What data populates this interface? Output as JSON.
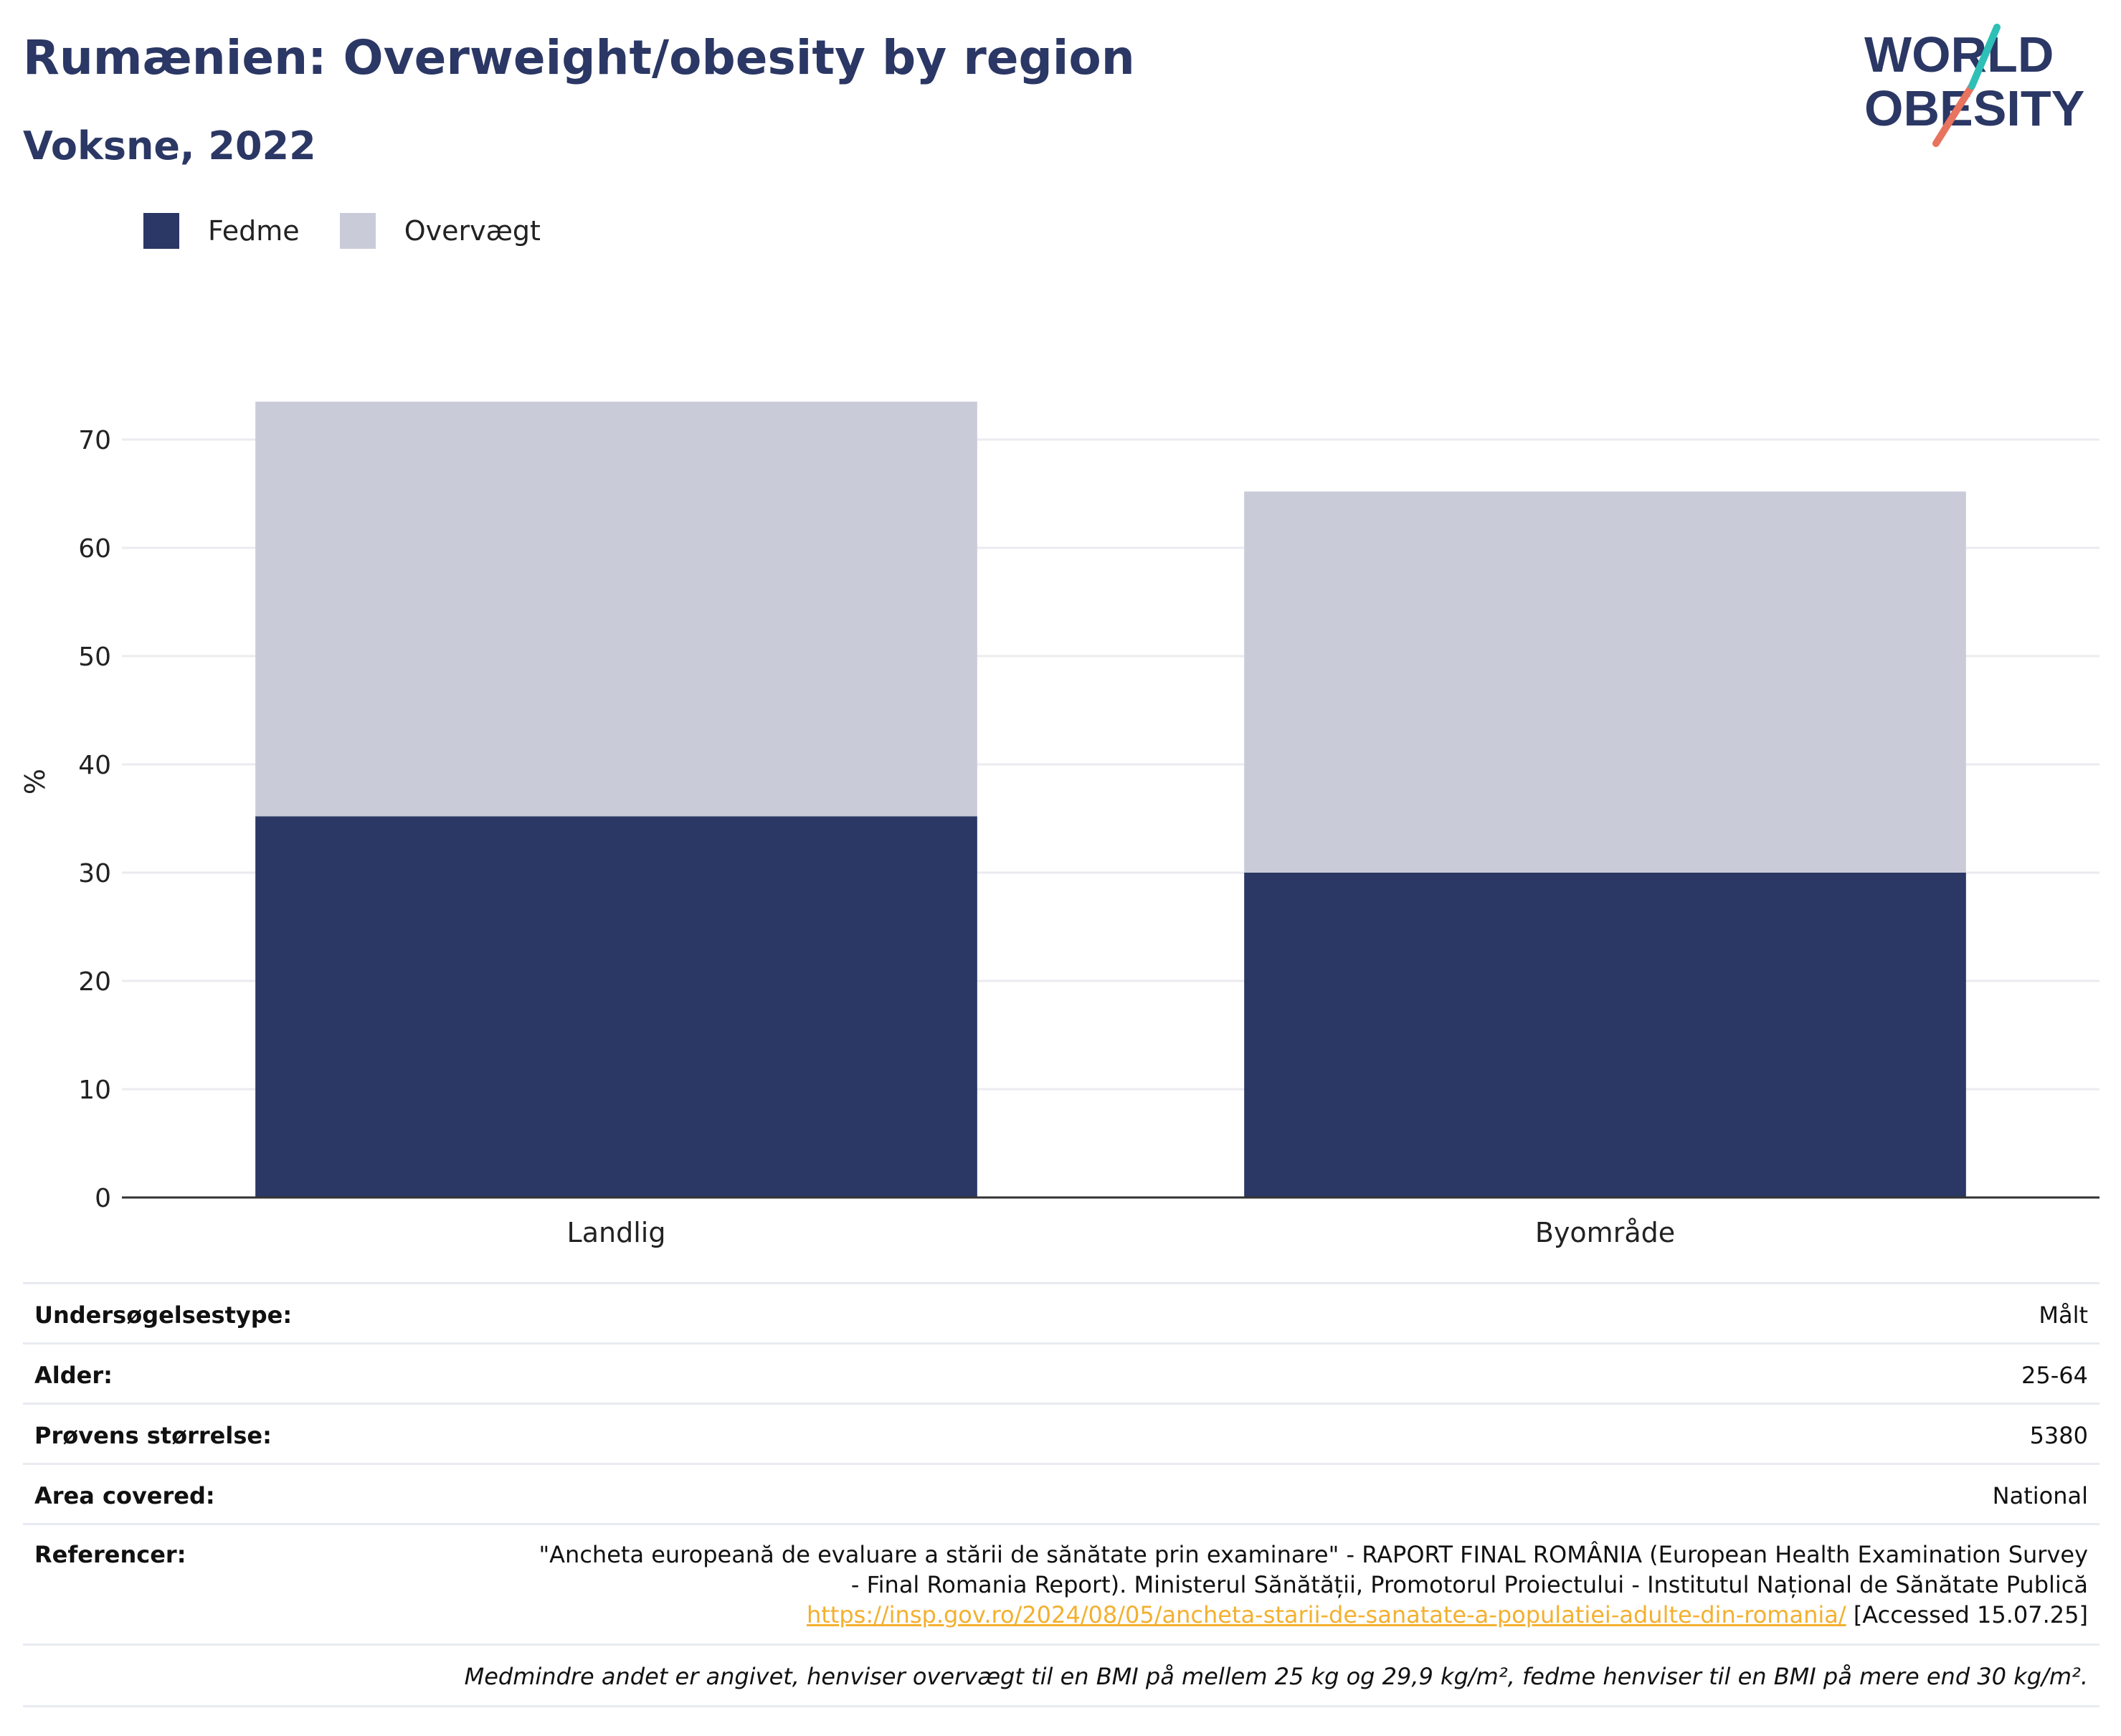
{
  "title": "Rumænien: Overweight/obesity by region",
  "subtitle": "Voksne, 2022",
  "logo": {
    "line1": "WORLD",
    "line2": "OBESITY"
  },
  "legend": [
    {
      "label": "Fedme",
      "color": "#2b3764"
    },
    {
      "label": "Overvægt",
      "color": "#c9ccd8"
    }
  ],
  "chart_data": {
    "type": "bar",
    "stacked": true,
    "categories": [
      "Landlig",
      "Byområde"
    ],
    "series": [
      {
        "name": "Fedme",
        "values": [
          35.2,
          30.0
        ],
        "color": "#2b3764"
      },
      {
        "name": "Overvægt",
        "values": [
          38.3,
          35.2
        ],
        "color": "#c9ccd8"
      }
    ],
    "ylabel": "%",
    "xlabel": "",
    "ylim": [
      0,
      75
    ],
    "yticks": [
      0,
      10,
      20,
      30,
      40,
      50,
      60,
      70
    ],
    "grid": true,
    "legend_position": "top-left"
  },
  "meta": {
    "survey_type": {
      "label": "Undersøgelsestype:",
      "value": "Målt"
    },
    "age": {
      "label": "Alder:",
      "value": "25-64"
    },
    "sample": {
      "label": "Prøvens størrelse:",
      "value": "5380"
    },
    "area": {
      "label": "Area covered:",
      "value": "National"
    },
    "references": {
      "label": "Referencer:",
      "line1": "\"Ancheta europeană de evaluare a stării de sănătate prin examinare\" - RAPORT FINAL ROMÂNIA (European Health Examination Survey",
      "line2": "- Final Romania Report). Ministerul Sănătății, Promotorul Proiectului - Institutul Național de Sănătate Publică",
      "link": "https://insp.gov.ro/2024/08/05/ancheta-starii-de-sanatate-a-populatiei-adulte-din-romania/",
      "accessed": " [Accessed 15.07.25]"
    },
    "note": "Medmindre andet er angivet, henviser overvægt til en BMI på mellem 25 kg og 29,9 kg/m², fedme henviser til en BMI på mere end 30 kg/m²."
  }
}
